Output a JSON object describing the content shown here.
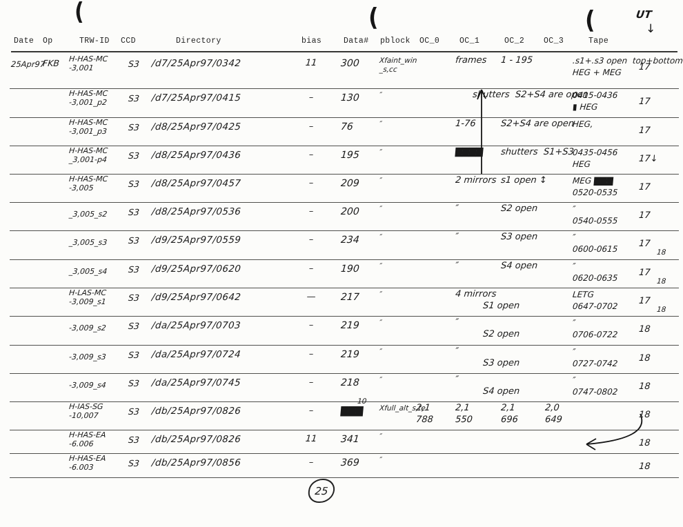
{
  "page": {
    "number": "25"
  },
  "annotations": {
    "ut_label": "UT",
    "ut_arrow": "↓",
    "pen_marks": [
      "(",
      "(",
      "("
    ]
  },
  "header": {
    "columns": [
      "Date",
      "Op",
      "TRW-ID",
      "CCD",
      "Directory",
      "bias",
      "Data#",
      "pblock",
      "OC_0",
      "OC_1",
      "OC_2",
      "OC_3",
      "Tape"
    ]
  },
  "rows": [
    {
      "date": "25Apr97",
      "op": "FKB",
      "trw1": "H-HAS-MC",
      "trw2": "-3,001",
      "ccd": "S3",
      "dir": "/d7/25Apr97/0342",
      "bias": "11",
      "data": "300",
      "pb1": "Xfaint_win",
      "pb2": "_s,cc",
      "oc1": "frames",
      "oc2": "1 - 195",
      "tape": ".s1+.s3 open  top+bottom",
      "tape2": "HEG + MEG",
      "ut": "17"
    },
    {
      "trw1": "H-HAS-MC",
      "trw2": "-3,001_p2",
      "ccd": "S3",
      "dir": "/d7/25Apr97/0415",
      "bias": "–",
      "data": "130",
      "pb1": "″",
      "mid": "shutters  S2+S4 are open",
      "tape": "0415-0436",
      "tape2": "▮ HEG",
      "ut": "17"
    },
    {
      "trw1": "H-HAS-MC",
      "trw2": "-3,001_p3",
      "ccd": "S3",
      "dir": "/d8/25Apr97/0425",
      "bias": "–",
      "data": "76",
      "pb1": "″",
      "oc1": "1-76",
      "oc2": "S2+S4 are open",
      "tape": "HEG,",
      "ut": "17"
    },
    {
      "trw1": "H-HAS-MC",
      "trw2": "_3,001-p4",
      "ccd": "S3",
      "dir": "/d8/25Apr97/0436",
      "bias": "–",
      "data": "195",
      "pb1": "″",
      "oc1": "▇▇▇▇",
      "oc2": "shutters  S1+S3",
      "tape": "0435-0456",
      "tape2": "HEG",
      "ut": "17↓"
    },
    {
      "trw1": "H-HAS-MC",
      "trw2": "-3,005",
      "ccd": "S3",
      "dir": "/d8/25Apr97/0457",
      "bias": "–",
      "data": "209",
      "pb1": "″",
      "oc1": "2 mirrors",
      "oc2": "s1 open ↕",
      "tape": "MEG ▇▇▇",
      "tape2": "0520-0535",
      "ut": "17"
    },
    {
      "trw2": "_3,005_s2",
      "ccd": "S3",
      "dir": "/d8/25Apr97/0536",
      "bias": "–",
      "data": "200",
      "pb1": "″",
      "oc1": "″",
      "oc2": "S2 open",
      "tape": "″",
      "tape2": "0540-0555",
      "ut": "17"
    },
    {
      "trw2": "_3,005_s3",
      "ccd": "S3",
      "dir": "/d9/25Apr97/0559",
      "bias": "–",
      "data": "234",
      "pb1": "″",
      "oc1": "″",
      "oc2": "S3 open",
      "tape": "″",
      "tape2": "0600-0615",
      "ut": "17",
      "ut2": "18"
    },
    {
      "trw2": "_3,005_s4",
      "ccd": "S3",
      "dir": "/d9/25Apr97/0620",
      "bias": "–",
      "data": "190",
      "pb1": "″",
      "oc1": "″",
      "oc2": "S4 open",
      "tape": "″",
      "tape2": "0620-0635",
      "ut": "17",
      "ut2": "18"
    },
    {
      "trw1": "H-LAS-MC",
      "trw2": "-3,009_s1",
      "ccd": "S3",
      "dir": "/d9/25Apr97/0642",
      "bias": "—",
      "data": "217",
      "pb1": "″",
      "oc1": "4 mirrors",
      "open2": "S1 open",
      "tape": "LETG",
      "tape2": "0647-0702",
      "ut": "17",
      "ut2": "18"
    },
    {
      "trw2": "-3,009_s2",
      "ccd": "S3",
      "dir": "/da/25Apr97/0703",
      "bias": "–",
      "data": "219",
      "pb1": "″",
      "oc1": "″",
      "open2": "S2 open",
      "tape": "″",
      "tape2": "0706-0722",
      "ut": "18"
    },
    {
      "trw2": "-3,009_s3",
      "ccd": "S3",
      "dir": "/da/25Apr97/0724",
      "bias": "–",
      "data": "219",
      "pb1": "″",
      "oc1": "″",
      "open2": "S3 open",
      "tape": "″",
      "tape2": "0727-0742",
      "ut": "18"
    },
    {
      "trw2": "-3,009_s4",
      "ccd": "S3",
      "dir": "/da/25Apr97/0745",
      "bias": "–",
      "data": "218",
      "pb1": "″",
      "oc1": "″",
      "open2": "S4 open",
      "tape": "″",
      "tape2": "0747-0802",
      "ut": "18"
    },
    {
      "trw1": "H-IAS-SG",
      "trw2": "-10,007",
      "ccd": "S3",
      "dir": "/db/25Apr97/0826",
      "bias": "–",
      "data": "▇▇▇",
      "data_note": "10",
      "pb1": "Xfull_alt_s,te",
      "oc0": "2,1",
      "oc0b": "788",
      "oc1": "2,1",
      "oc1b": "550",
      "oc2": "2,1",
      "oc2b": "696",
      "oc3": "2,0",
      "oc3b": "649",
      "ut": "18"
    },
    {
      "trw1": "H-HAS-EA",
      "trw2": "-6.006",
      "ccd": "S3",
      "dir": "/db/25Apr97/0826",
      "bias": "11",
      "data": "341",
      "pb1": "″",
      "ut": "18"
    },
    {
      "trw1": "H-HAS-EA",
      "trw2": "-6.003",
      "ccd": "S3",
      "dir": "/db/25Apr97/0856",
      "bias": "–",
      "data": "369",
      "pb1": "″",
      "ut": "18"
    }
  ]
}
